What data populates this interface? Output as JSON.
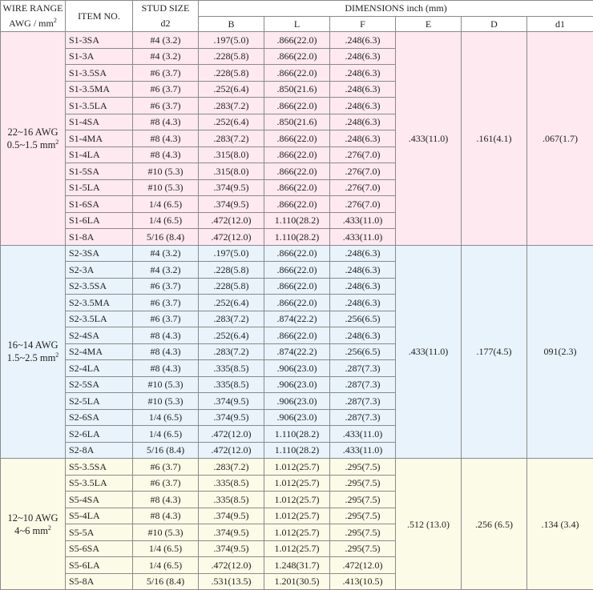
{
  "header": {
    "wire_range_line1": "WIRE RANGE",
    "wire_range_line2": "AWG / mm",
    "wire_range_sup": "2",
    "item_no": "ITEM NO.",
    "stud_size_line1": "STUD SIZE",
    "stud_size_line2": "d2",
    "dimensions": "DIMENSIONS inch (mm)",
    "cols": [
      "B",
      "L",
      "F",
      "E",
      "D",
      "d1"
    ]
  },
  "groups": [
    {
      "awg": "22~16 AWG",
      "mm2": "0.5~1.5 mm",
      "mm2_sup": "2",
      "E": ".433(11.0)",
      "D": ".161(4.1)",
      "d1": ".067(1.7)",
      "rows": [
        {
          "item": "S1-3SA",
          "stud": "#4 (3.2)",
          "B": ".197(5.0)",
          "L": ".866(22.0)",
          "F": ".248(6.3)"
        },
        {
          "item": "S1-3A",
          "stud": "#4 (3.2)",
          "B": ".228(5.8)",
          "L": ".866(22.0)",
          "F": ".248(6.3)"
        },
        {
          "item": "S1-3.5SA",
          "stud": "#6 (3.7)",
          "B": ".228(5.8)",
          "L": ".866(22.0)",
          "F": ".248(6.3)"
        },
        {
          "item": "S1-3.5MA",
          "stud": "#6 (3.7)",
          "B": ".252(6.4)",
          "L": ".850(21.6)",
          "F": ".248(6.3)"
        },
        {
          "item": "S1-3.5LA",
          "stud": "#6 (3.7)",
          "B": ".283(7.2)",
          "L": ".866(22.0)",
          "F": ".248(6.3)"
        },
        {
          "item": "S1-4SA",
          "stud": "#8 (4.3)",
          "B": ".252(6.4)",
          "L": ".850(21.6)",
          "F": ".248(6.3)"
        },
        {
          "item": "S1-4MA",
          "stud": "#8 (4.3)",
          "B": ".283(7.2)",
          "L": ".866(22.0)",
          "F": ".248(6.3)"
        },
        {
          "item": "S1-4LA",
          "stud": "#8 (4.3)",
          "B": ".315(8.0)",
          "L": ".866(22.0)",
          "F": ".276(7.0)"
        },
        {
          "item": "S1-5SA",
          "stud": "#10 (5.3)",
          "B": ".315(8.0)",
          "L": ".866(22.0)",
          "F": ".276(7.0)"
        },
        {
          "item": "S1-5LA",
          "stud": "#10 (5.3)",
          "B": ".374(9.5)",
          "L": ".866(22.0)",
          "F": ".276(7.0)"
        },
        {
          "item": "S1-6SA",
          "stud": "1/4 (6.5)",
          "B": ".374(9.5)",
          "L": ".866(22.0)",
          "F": ".276(7.0)"
        },
        {
          "item": "S1-6LA",
          "stud": "1/4 (6.5)",
          "B": ".472(12.0)",
          "L": "1.110(28.2)",
          "F": ".433(11.0)"
        },
        {
          "item": "S1-8A",
          "stud": "5/16 (8.4)",
          "B": ".472(12.0)",
          "L": "1.110(28.2)",
          "F": ".433(11.0)"
        }
      ]
    },
    {
      "awg": "16~14 AWG",
      "mm2": "1.5~2.5 mm",
      "mm2_sup": "2",
      "E": ".433(11.0)",
      "D": ".177(4.5)",
      "d1": "091(2.3)",
      "rows": [
        {
          "item": "S2-3SA",
          "stud": "#4 (3.2)",
          "B": ".197(5.0)",
          "L": ".866(22.0)",
          "F": ".248(6.3)"
        },
        {
          "item": "S2-3A",
          "stud": "#4 (3.2)",
          "B": ".228(5.8)",
          "L": ".866(22.0)",
          "F": ".248(6.3)"
        },
        {
          "item": "S2-3.5SA",
          "stud": "#6 (3.7)",
          "B": ".228(5.8)",
          "L": ".866(22.0)",
          "F": ".248(6.3)"
        },
        {
          "item": "S2-3.5MA",
          "stud": "#6 (3.7)",
          "B": ".252(6.4)",
          "L": ".866(22.0)",
          "F": ".248(6.3)"
        },
        {
          "item": "S2-3.5LA",
          "stud": "#6 (3.7)",
          "B": ".283(7.2)",
          "L": ".874(22.2)",
          "F": ".256(6.5)"
        },
        {
          "item": "S2-4SA",
          "stud": "#8 (4.3)",
          "B": ".252(6.4)",
          "L": ".866(22.0)",
          "F": ".248(6.3)"
        },
        {
          "item": "S2-4MA",
          "stud": "#8 (4.3)",
          "B": ".283(7.2)",
          "L": ".874(22.2)",
          "F": ".256(6.5)"
        },
        {
          "item": "S2-4LA",
          "stud": "#8 (4.3)",
          "B": ".335(8.5)",
          "L": ".906(23.0)",
          "F": ".287(7.3)"
        },
        {
          "item": "S2-5SA",
          "stud": "#10 (5.3)",
          "B": ".335(8.5)",
          "L": ".906(23.0)",
          "F": ".287(7.3)"
        },
        {
          "item": "S2-5LA",
          "stud": "#10 (5.3)",
          "B": ".374(9.5)",
          "L": ".906(23.0)",
          "F": ".287(7.3)"
        },
        {
          "item": "S2-6SA",
          "stud": "1/4 (6.5)",
          "B": ".374(9.5)",
          "L": ".906(23.0)",
          "F": ".287(7.3)"
        },
        {
          "item": "S2-6LA",
          "stud": "1/4 (6.5)",
          "B": ".472(12.0)",
          "L": "1.110(28.2)",
          "F": ".433(11.0)"
        },
        {
          "item": "S2-8A",
          "stud": "5/16 (8.4)",
          "B": ".472(12.0)",
          "L": "1.110(28.2)",
          "F": ".433(11.0)"
        }
      ]
    },
    {
      "awg": "12~10 AWG",
      "mm2": "4~6 mm",
      "mm2_sup": "2",
      "E": ".512 (13.0)",
      "D": ".256 (6.5)",
      "d1": ".134 (3.4)",
      "rows": [
        {
          "item": "S5-3.5SA",
          "stud": "#6 (3.7)",
          "B": ".283(7.2)",
          "L": "1.012(25.7)",
          "F": ".295(7.5)"
        },
        {
          "item": "S5-3.5LA",
          "stud": "#6 (3.7)",
          "B": ".335(8.5)",
          "L": "1.012(25.7)",
          "F": ".295(7.5)"
        },
        {
          "item": "S5-4SA",
          "stud": "#8 (4.3)",
          "B": ".335(8.5)",
          "L": "1.012(25.7)",
          "F": ".295(7.5)"
        },
        {
          "item": "S5-4LA",
          "stud": "#8 (4.3)",
          "B": ".374(9.5)",
          "L": "1.012(25.7)",
          "F": ".295(7.5)"
        },
        {
          "item": "S5-5A",
          "stud": "#10 (5.3)",
          "B": ".374(9.5)",
          "L": "1.012(25.7)",
          "F": ".295(7.5)"
        },
        {
          "item": "S5-6SA",
          "stud": "1/4 (6.5)",
          "B": ".374(9.5)",
          "L": "1.012(25.7)",
          "F": ".295(7.5)"
        },
        {
          "item": "S5-6LA",
          "stud": "1/4 (6.5)",
          "B": ".472(12.0)",
          "L": "1.248(31.7)",
          "F": ".472(12.0)"
        },
        {
          "item": "S5-8A",
          "stud": "5/16 (8.4)",
          "B": ".531(13.5)",
          "L": "1.201(30.5)",
          "F": ".413(10.5)"
        }
      ]
    }
  ]
}
